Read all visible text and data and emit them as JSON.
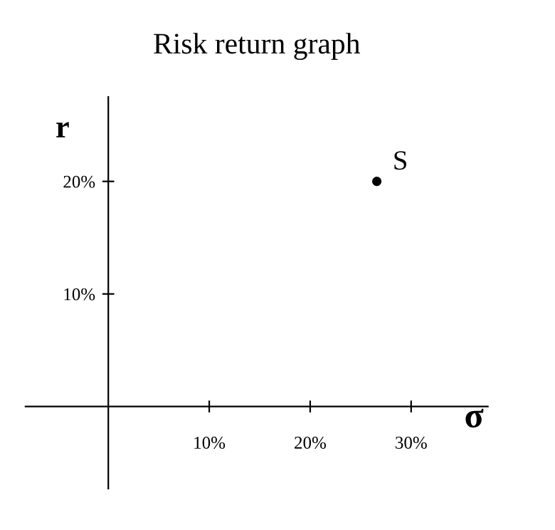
{
  "chart_data": {
    "type": "scatter",
    "title": "Risk return graph",
    "xlabel": "σ",
    "ylabel": "r",
    "x": [
      26.6
    ],
    "values": [
      20
    ],
    "color": "#000000",
    "xlim": [
      -8.2,
      37.6
    ],
    "ylim": [
      -7.3,
      27.5
    ],
    "xticks": [
      {
        "value": 10,
        "label": "10%"
      },
      {
        "value": 20,
        "label": "20%"
      },
      {
        "value": 30,
        "label": "30%"
      }
    ],
    "yticks": [
      {
        "value": 10,
        "label": "10%"
      },
      {
        "value": 20,
        "label": "20%"
      }
    ],
    "annotations": [
      {
        "text": "S",
        "x": 26.6,
        "y": 20
      }
    ],
    "marker": "circle",
    "grid": false,
    "legend": false
  }
}
